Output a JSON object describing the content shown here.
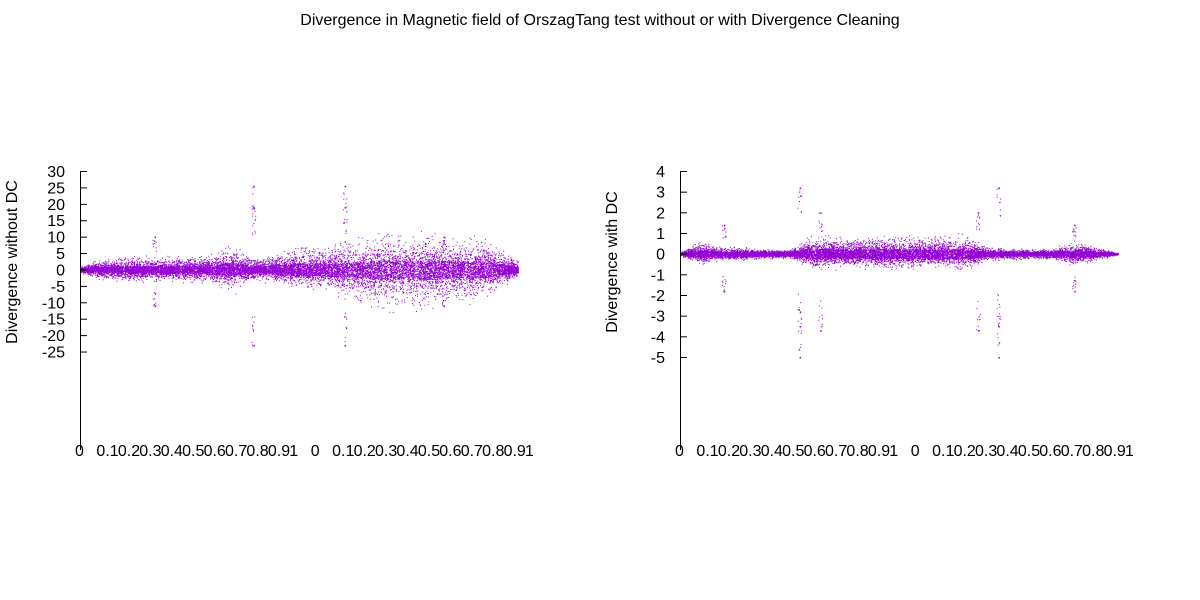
{
  "title": "Divergence in Magnetic field of OrszagTang test without or with Divergence Cleaning",
  "colors": {
    "points": "#9400d3",
    "axis": "#000000",
    "background": "#ffffff"
  },
  "chart_data": [
    {
      "type": "scatter",
      "title": "",
      "xlabel": "",
      "ylabel": "Divergence without DC",
      "grid": false,
      "legend": "none",
      "x_tick_labels": [
        "0",
        "0.1",
        "0.2",
        "0.3",
        "0.4",
        "0.5",
        "0.6",
        "0.7",
        "0.8",
        "0.9",
        "1",
        "0",
        "0.1",
        "0.2",
        "0.3",
        "0.4",
        "0.5",
        "0.6",
        "0.7",
        "0.8",
        "0.9",
        "1"
      ],
      "y_tick_labels": [
        "30",
        "25",
        "20",
        "15",
        "10",
        "5",
        "0",
        "-5",
        "-10",
        "-15",
        "-20",
        "-25"
      ],
      "ylim": [
        -55,
        30
      ],
      "series": [
        {
          "color": "#9400d3",
          "profile_x": [
            0.0,
            0.05,
            0.1,
            0.15,
            0.2,
            0.25,
            0.3,
            0.35,
            0.4,
            0.45,
            0.5,
            0.55,
            0.6,
            0.65,
            0.7,
            0.75,
            0.8,
            0.85,
            0.9,
            0.95,
            1.0
          ],
          "envelope_positive": [
            1,
            3,
            4,
            4,
            4,
            4,
            5,
            7,
            3,
            5,
            7,
            7,
            8,
            9,
            11,
            10,
            11,
            9,
            10,
            7,
            3
          ],
          "envelope_negative": [
            -1,
            -3,
            -4,
            -4,
            -3,
            -4,
            -4,
            -6,
            -3,
            -4,
            -5,
            -6,
            -8,
            -9,
            -12,
            -11,
            -12,
            -9,
            -9,
            -6,
            -2
          ],
          "outliers": [
            {
              "x": 0.396,
              "y": 25.5
            },
            {
              "x": 0.396,
              "y": 19
            },
            {
              "x": 0.396,
              "y": -23
            },
            {
              "x": 0.604,
              "y": 25.5
            },
            {
              "x": 0.604,
              "y": 19
            },
            {
              "x": 0.604,
              "y": -23
            },
            {
              "x": 0.17,
              "y": 10
            },
            {
              "x": 0.83,
              "y": 10
            },
            {
              "x": 0.17,
              "y": -11
            },
            {
              "x": 0.83,
              "y": -11
            }
          ]
        }
      ]
    },
    {
      "type": "scatter",
      "title": "",
      "xlabel": "",
      "ylabel": "Divergence with DC",
      "grid": false,
      "legend": "none",
      "x_tick_labels": [
        "0",
        "0.1",
        "0.2",
        "0.3",
        "0.4",
        "0.5",
        "0.6",
        "0.7",
        "0.8",
        "0.9",
        "1",
        "0",
        "0.1",
        "0.2",
        "0.3",
        "0.4",
        "0.5",
        "0.6",
        "0.7",
        "0.8",
        "0.9",
        "1"
      ],
      "y_tick_labels": [
        "4",
        "3",
        "2",
        "1",
        "0",
        "-1",
        "-2",
        "-3",
        "-4",
        "-5"
      ],
      "ylim": [
        -9.5,
        4
      ],
      "series": [
        {
          "color": "#9400d3",
          "profile_x": [
            0.0,
            0.05,
            0.1,
            0.15,
            0.2,
            0.25,
            0.3,
            0.35,
            0.4,
            0.45,
            0.5,
            0.55,
            0.6,
            0.65,
            0.7,
            0.75,
            0.8,
            0.85,
            0.9,
            0.95,
            1.0
          ],
          "envelope_positive": [
            0.1,
            0.6,
            0.3,
            0.3,
            0.2,
            0.2,
            0.9,
            0.8,
            0.7,
            0.9,
            0.8,
            0.9,
            0.8,
            0.9,
            0.3,
            0.25,
            0.2,
            0.25,
            0.6,
            0.3,
            0.05
          ],
          "envelope_negative": [
            -0.1,
            -0.5,
            -0.3,
            -0.3,
            -0.2,
            -0.2,
            -0.7,
            -0.6,
            -0.6,
            -0.7,
            -0.7,
            -0.7,
            -0.6,
            -0.7,
            -0.3,
            -0.25,
            -0.25,
            -0.25,
            -0.5,
            -0.3,
            -0.05
          ],
          "outliers": [
            {
              "x": 0.273,
              "y": 3.2
            },
            {
              "x": 0.273,
              "y": -5.0
            },
            {
              "x": 0.273,
              "y": -3.5
            },
            {
              "x": 0.727,
              "y": 3.2
            },
            {
              "x": 0.727,
              "y": -5.0
            },
            {
              "x": 0.727,
              "y": -3.5
            },
            {
              "x": 0.32,
              "y": 2.0
            },
            {
              "x": 0.32,
              "y": -3.7
            },
            {
              "x": 0.68,
              "y": 2.0
            },
            {
              "x": 0.68,
              "y": -3.7
            },
            {
              "x": 0.1,
              "y": 1.4
            },
            {
              "x": 0.1,
              "y": -1.8
            },
            {
              "x": 0.9,
              "y": 1.4
            },
            {
              "x": 0.9,
              "y": -1.8
            }
          ]
        }
      ]
    }
  ]
}
